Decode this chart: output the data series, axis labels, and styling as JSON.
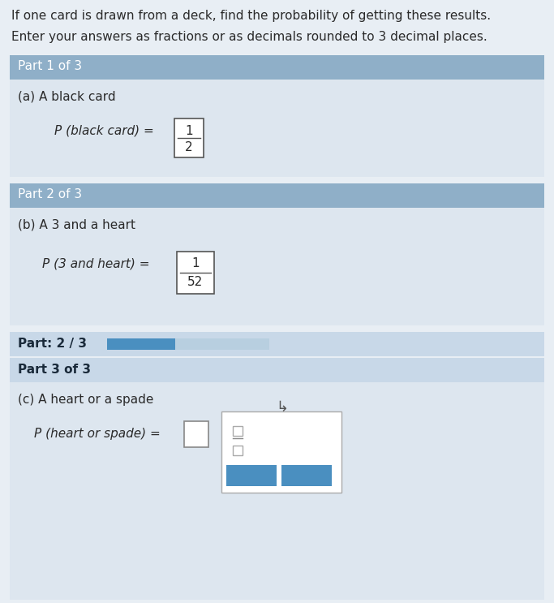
{
  "title_line1": "If one card is drawn from a deck, find the probability of getting these results.",
  "title_line2": "Enter your answers as fractions or as decimals rounded to 3 decimal places.",
  "bg_color": "#e8eef4",
  "header_bg": "#8fafc8",
  "body_bg": "#dde6ef",
  "progress_bg": "#c8d8e8",
  "part3_body_bg": "#dde6ef",
  "bar_filled_color": "#4a8fc0",
  "bar_empty_color": "#b8cfe0",
  "text_color": "#2a2a2a",
  "header_text_color": "#ffffff",
  "frac_border_color": "#555555",
  "popup_border_color": "#aaaaaa",
  "btn_color": "#4a8fc0",
  "parts": [
    {
      "header": "Part 1 of 3",
      "body_label": "(a) A black card",
      "eq_prefix": "P (black card) = ",
      "frac_num": "1",
      "frac_den": "2"
    },
    {
      "header": "Part 2 of 3",
      "body_label": "(b) A 3 and a heart",
      "eq_prefix": "P (3 and heart) = ",
      "frac_num": "1",
      "frac_den": "52"
    }
  ],
  "progress_label": "Part: 2 / 3",
  "progress_ratio": 0.42,
  "part3_header": "Part 3 of 3",
  "part3_label": "(c) A heart or a spade",
  "part3_eq": "P (heart or spade) = "
}
